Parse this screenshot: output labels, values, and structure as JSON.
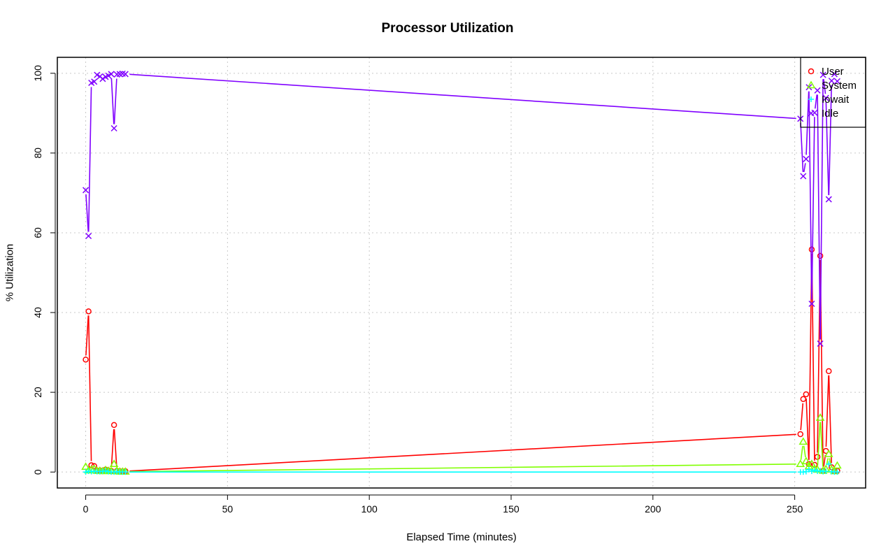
{
  "chart_data": {
    "type": "line",
    "title": "Processor Utilization",
    "xlabel": "Elapsed Time (minutes)",
    "ylabel": "% Utilization",
    "xlim": [
      -10,
      275
    ],
    "ylim": [
      -4,
      104
    ],
    "x_ticks": [
      0,
      50,
      100,
      150,
      200,
      250
    ],
    "y_ticks": [
      0,
      20,
      40,
      60,
      80,
      100
    ],
    "grid": true,
    "legend_position": "top-right",
    "x": [
      0,
      1,
      2,
      3,
      4,
      5,
      6,
      7,
      8,
      9,
      10,
      11,
      12,
      13,
      14,
      252,
      253,
      254,
      255,
      256,
      257,
      258,
      259,
      260,
      261,
      262,
      263,
      264,
      265
    ],
    "series": [
      {
        "name": "User",
        "color": "#ff0000",
        "marker": "circle",
        "values": [
          28.2,
          40.3,
          1.7,
          1.5,
          0.3,
          0.4,
          0.2,
          0.6,
          0.4,
          0.3,
          11.8,
          0.3,
          0.2,
          0.1,
          0.2,
          9.5,
          18.3,
          19.5,
          2.0,
          55.8,
          1.8,
          3.8,
          54.2,
          0.3,
          5.3,
          25.3,
          1.2,
          0.2,
          0.3
        ]
      },
      {
        "name": "System",
        "color": "#80ff00",
        "marker": "triangle",
        "values": [
          1.3,
          0.4,
          0.6,
          0.8,
          0.3,
          0.3,
          0.2,
          0.5,
          0.3,
          0.2,
          2.0,
          0.3,
          0.1,
          0.1,
          0.1,
          2.0,
          7.6,
          2.7,
          1.4,
          2.0,
          0.8,
          0.6,
          13.6,
          0.3,
          0.7,
          4.5,
          0.6,
          0.2,
          1.6
        ]
      },
      {
        "name": "Iowait",
        "color": "#00ffff",
        "marker": "plus",
        "values": [
          0.0,
          0.2,
          0.1,
          0.2,
          0.1,
          0.1,
          0.2,
          0.3,
          0.1,
          0.0,
          0.0,
          0.1,
          0.0,
          0.0,
          0.0,
          0.0,
          0.0,
          0.1,
          0.6,
          0.2,
          0.5,
          0.2,
          0.3,
          0.1,
          0.2,
          2.0,
          0.1,
          0.0,
          0.0
        ]
      },
      {
        "name": "Idle",
        "color": "#8000ff",
        "marker": "x",
        "values": [
          70.7,
          59.2,
          97.6,
          97.9,
          99.6,
          99.2,
          98.6,
          99.1,
          99.4,
          99.8,
          86.2,
          99.7,
          99.8,
          99.9,
          99.8,
          88.6,
          74.2,
          78.5,
          96.5,
          42.2,
          90.1,
          95.7,
          32.2,
          99.6,
          93.8,
          68.4,
          98.1,
          99.8,
          98.0
        ]
      }
    ]
  }
}
